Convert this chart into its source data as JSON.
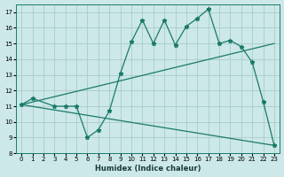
{
  "title": "",
  "xlabel": "Humidex (Indice chaleur)",
  "bg_color": "#cce8e8",
  "grid_color": "#aacccc",
  "line_color": "#1a7a6a",
  "xlim": [
    -0.5,
    23.5
  ],
  "ylim": [
    8,
    17.5
  ],
  "yticks": [
    8,
    9,
    10,
    11,
    12,
    13,
    14,
    15,
    16,
    17
  ],
  "xticks": [
    0,
    1,
    2,
    3,
    4,
    5,
    6,
    7,
    8,
    9,
    10,
    11,
    12,
    13,
    14,
    15,
    16,
    17,
    18,
    19,
    20,
    21,
    22,
    23
  ],
  "spiky_x": [
    0,
    1,
    3,
    4,
    5,
    6,
    7,
    8,
    9,
    10,
    11,
    12,
    13,
    14,
    15,
    16,
    17,
    18,
    19,
    20,
    21,
    22,
    23
  ],
  "spiky_y": [
    11.1,
    11.5,
    11.0,
    11.0,
    11.0,
    9.0,
    9.5,
    10.7,
    13.1,
    15.1,
    16.5,
    15.0,
    16.5,
    14.9,
    16.1,
    16.6,
    17.2,
    15.0,
    15.2,
    14.8,
    13.8,
    11.3,
    8.5
  ],
  "upper_line_x": [
    0,
    23
  ],
  "upper_line_y": [
    11.1,
    15.0
  ],
  "lower_line_x": [
    0,
    23
  ],
  "lower_line_y": [
    11.1,
    8.5
  ],
  "marker": "*",
  "markersize": 3.5,
  "linewidth": 0.9,
  "tick_fontsize": 5.0,
  "xlabel_fontsize": 6.0
}
